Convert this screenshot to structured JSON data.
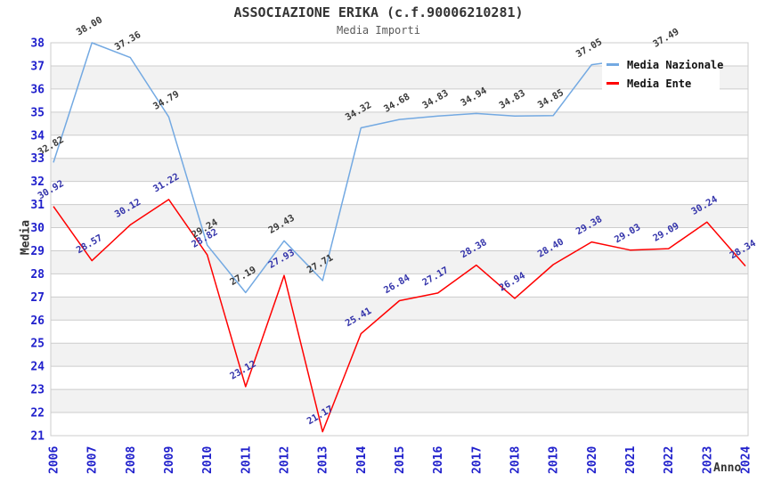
{
  "header": {
    "title": "ASSOCIAZIONE ERIKA (c.f.90006210281)",
    "subtitle": "Media Importi"
  },
  "legend": {
    "items": [
      {
        "label": "Media Nazionale",
        "color": "#73A9E2"
      },
      {
        "label": "Media Ente",
        "color": "#FF0000"
      }
    ]
  },
  "axes": {
    "y_title": "Media",
    "x_title": "Anno",
    "tick_color": "#2020CC",
    "y_ticks": [
      21,
      22,
      23,
      24,
      25,
      26,
      27,
      28,
      29,
      30,
      31,
      32,
      33,
      34,
      35,
      36,
      37,
      38
    ]
  },
  "chart_data": {
    "type": "line",
    "title": "ASSOCIAZIONE ERIKA (c.f.90006210281)",
    "subtitle": "Media Importi",
    "xlabel": "Anno",
    "ylabel": "Media",
    "ylim": [
      21,
      38
    ],
    "grid": {
      "band_white": "#FFFFFF",
      "band_gray": "#F2F2F2",
      "line_color": "#CCCCCC"
    },
    "legend_position": "top-right-inside",
    "categories": [
      "2006",
      "2007",
      "2008",
      "2009",
      "2010",
      "2011",
      "2012",
      "2013",
      "2014",
      "2015",
      "2016",
      "2017",
      "2018",
      "2019",
      "2020",
      "2021",
      "2022",
      "2023",
      "2024"
    ],
    "series": [
      {
        "name": "Media Nazionale",
        "color": "#73A9E2",
        "label_color": "#3A3A3A",
        "values": [
          32.82,
          38.0,
          37.36,
          34.79,
          29.24,
          27.19,
          29.43,
          27.71,
          34.32,
          34.68,
          34.83,
          34.94,
          34.83,
          34.85,
          37.05,
          null,
          37.49,
          null,
          null
        ]
      },
      {
        "name": "Media Ente",
        "color": "#FF0000",
        "label_color": "#3333AA",
        "values": [
          30.92,
          28.57,
          30.12,
          31.22,
          28.82,
          23.12,
          27.93,
          21.17,
          25.41,
          26.84,
          27.17,
          28.38,
          26.94,
          28.4,
          29.38,
          29.03,
          29.09,
          30.24,
          28.34
        ]
      }
    ]
  }
}
